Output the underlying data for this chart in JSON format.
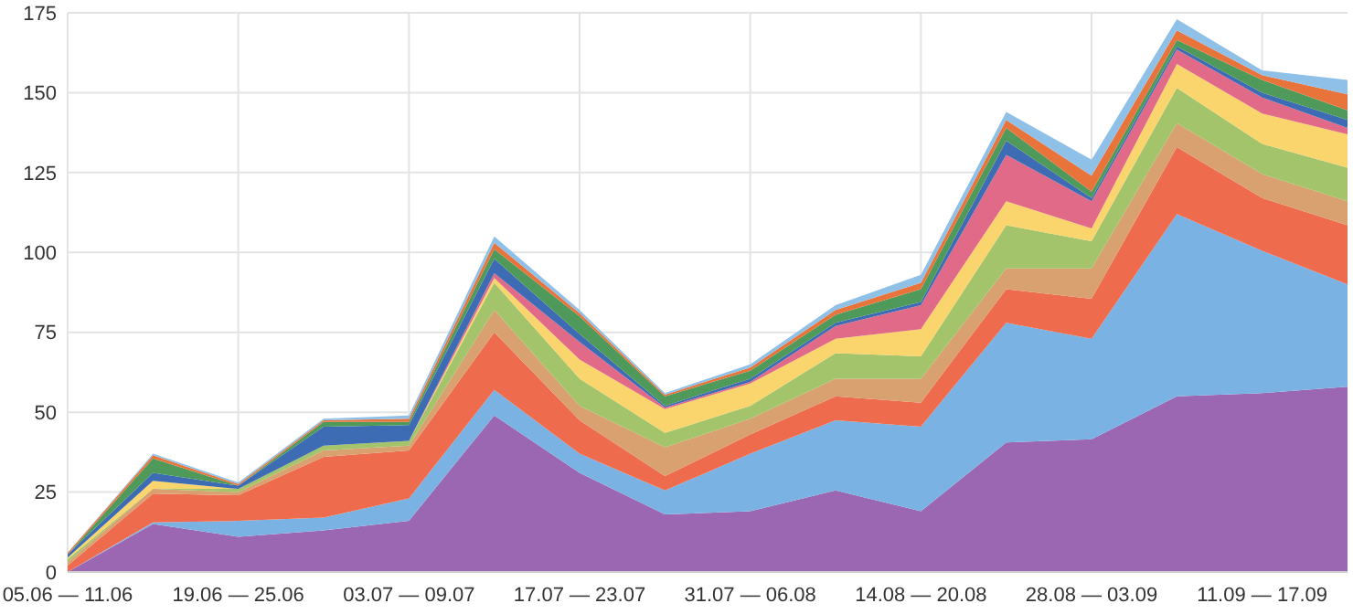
{
  "chart_data": {
    "type": "area",
    "stacked": true,
    "categories": [
      "05.06 — 11.06",
      null,
      "19.06 — 25.06",
      null,
      "03.07 — 09.07",
      null,
      "17.07 — 23.07",
      null,
      "31.07 — 06.08",
      null,
      "14.08 — 20.08",
      null,
      "28.08 — 03.09",
      null,
      "11.09 — 17.09",
      null
    ],
    "ylim": [
      0,
      175
    ],
    "yticks": [
      0,
      25,
      50,
      75,
      100,
      125,
      150,
      175
    ],
    "grid": true,
    "series": [
      {
        "color": "#9b67b3",
        "values": [
          0,
          15,
          11,
          13,
          16,
          49,
          31,
          18,
          19,
          25.5,
          19,
          40.5,
          41.5,
          55,
          56,
          58
        ]
      },
      {
        "color": "#7ab3e3",
        "values": [
          0,
          0.5,
          5,
          4,
          7,
          8,
          6,
          7.5,
          18,
          22,
          26.5,
          37.5,
          31.5,
          57,
          44.5,
          32
        ]
      },
      {
        "color": "#ee6c4d",
        "values": [
          2,
          9,
          8,
          19,
          15,
          18,
          10.5,
          4.5,
          6,
          7.5,
          7.5,
          10.5,
          12.5,
          21,
          16.5,
          18.5
        ]
      },
      {
        "color": "#d9a070",
        "values": [
          1,
          1.5,
          1,
          2,
          1.5,
          7,
          4.5,
          9,
          5,
          5.5,
          7.5,
          6.5,
          9.5,
          7.5,
          7.5,
          7.5
        ]
      },
      {
        "color": "#a3c46a",
        "values": [
          1,
          0,
          1,
          1.5,
          1.5,
          8.5,
          8.5,
          4.5,
          4,
          8,
          7,
          13.5,
          8.5,
          11,
          9.5,
          10.5
        ]
      },
      {
        "color": "#fad46c",
        "values": [
          0.5,
          2.5,
          0,
          0,
          0,
          1.5,
          6,
          7.5,
          7,
          4.5,
          8.5,
          7.5,
          4,
          7.5,
          9.5,
          10.5
        ]
      },
      {
        "color": "#e06a88",
        "values": [
          0,
          0,
          0,
          0,
          0,
          1.5,
          5.5,
          0.5,
          0.5,
          4,
          7.5,
          14.5,
          8.5,
          4.5,
          5,
          2
        ]
      },
      {
        "color": "#3d6cb5",
        "values": [
          1,
          2.5,
          1,
          6,
          5,
          4.5,
          2.5,
          0.5,
          1,
          1,
          1,
          4.5,
          1,
          1,
          1.5,
          2.5
        ]
      },
      {
        "color": "#4f9a5a",
        "values": [
          0,
          4.5,
          0,
          1.5,
          1,
          3,
          5.5,
          3,
          2.5,
          2.5,
          4,
          4,
          2,
          2,
          4,
          3
        ]
      },
      {
        "color": "#e8743b",
        "values": [
          0.5,
          1,
          0.5,
          0.5,
          1,
          2,
          1,
          0.5,
          1,
          1.5,
          2,
          2.5,
          5,
          3,
          1.5,
          5
        ]
      },
      {
        "color": "#8fc1e8",
        "values": [
          0,
          0.5,
          0.5,
          0.5,
          1,
          2,
          1,
          0.5,
          1,
          1.5,
          2.5,
          2.5,
          5,
          3.5,
          1.5,
          4.5
        ]
      }
    ]
  }
}
